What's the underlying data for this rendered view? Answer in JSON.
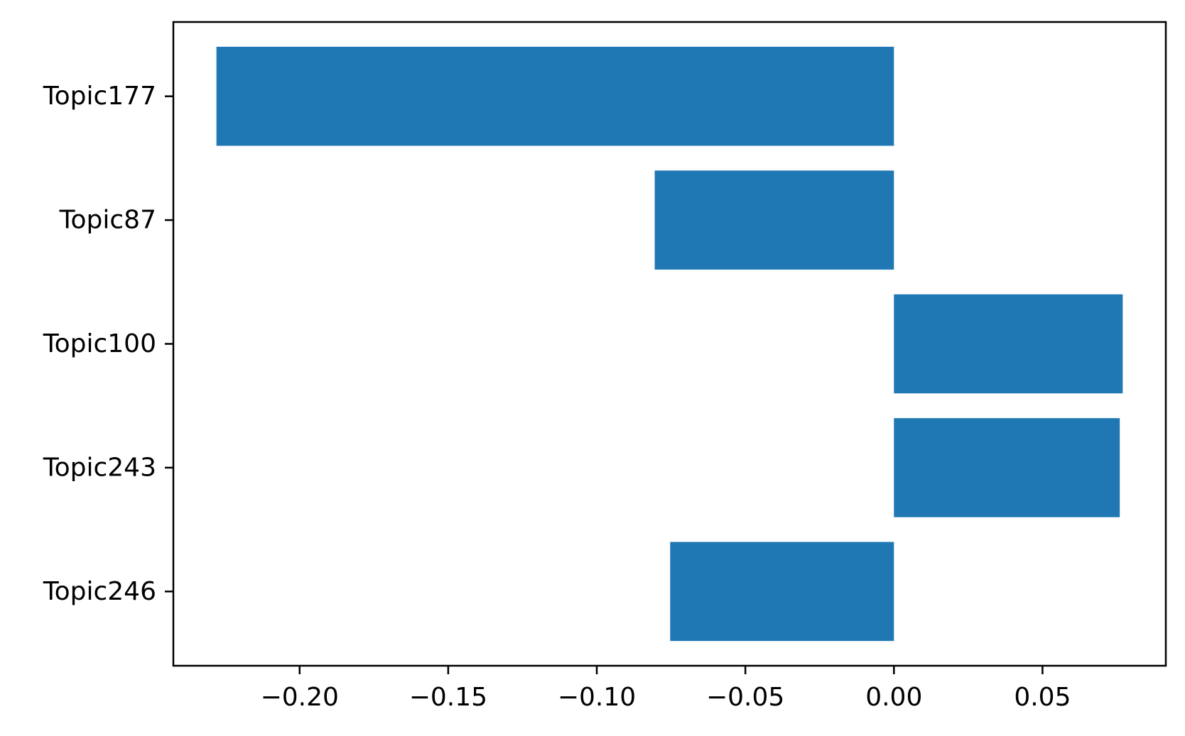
{
  "chart_data": {
    "type": "bar",
    "orientation": "horizontal",
    "title": "",
    "xlabel": "",
    "ylabel": "",
    "categories": [
      "Topic177",
      "Topic87",
      "Topic100",
      "Topic243",
      "Topic246"
    ],
    "values": [
      -0.228,
      -0.0805,
      0.077,
      0.076,
      -0.0753
    ],
    "xlim": [
      -0.2425,
      0.0915
    ],
    "x_ticks": [
      -0.2,
      -0.15,
      -0.1,
      -0.05,
      0.0,
      0.05
    ],
    "x_tick_labels": [
      "−0.20",
      "−0.15",
      "−0.10",
      "−0.05",
      "0.00",
      "0.05"
    ],
    "bar_color": "#1f77b4",
    "grid": false,
    "legend": "none"
  }
}
